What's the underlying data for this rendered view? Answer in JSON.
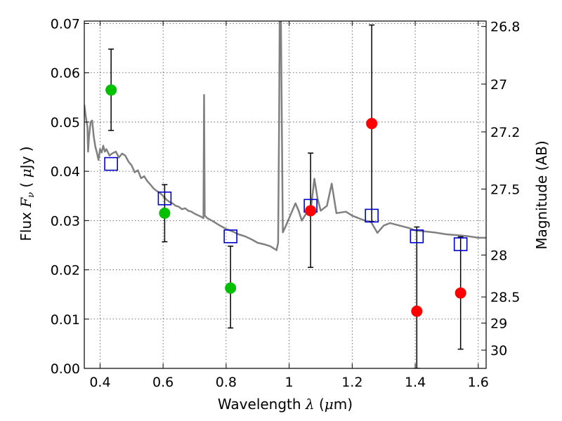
{
  "chart_data": {
    "type": "scatter",
    "xlabel": "Wavelength  λ (μm)",
    "ylabel": "Flux  F_ν  ( μJy )",
    "y2label": "Magnitude (AB)",
    "xlim": [
      0.35,
      1.625
    ],
    "ylim": [
      0.0,
      0.0705
    ],
    "grid": true,
    "x_ticks": [
      0.4,
      0.6,
      0.8,
      1.0,
      1.2,
      1.4,
      1.6
    ],
    "x_tick_labels": [
      "0.4",
      "0.6",
      "0.8",
      "1",
      "1.2",
      "1.4",
      "1.6"
    ],
    "y_ticks": [
      0.0,
      0.01,
      0.02,
      0.03,
      0.04,
      0.05,
      0.06,
      0.07
    ],
    "y_tick_labels": [
      "0.00",
      "0.01",
      "0.02",
      "0.03",
      "0.04",
      "0.05",
      "0.06",
      "0.07"
    ],
    "y2_ticks": [
      {
        "label": "26.8",
        "flux": 0.0694
      },
      {
        "label": "27",
        "flux": 0.0577
      },
      {
        "label": "27.2",
        "flux": 0.048
      },
      {
        "label": "27.5",
        "flux": 0.0364
      },
      {
        "label": "28",
        "flux": 0.023
      },
      {
        "label": "28.5",
        "flux": 0.0145
      },
      {
        "label": "29",
        "flux": 0.0092
      },
      {
        "label": "30",
        "flux": 0.0037
      }
    ],
    "colors": {
      "model": "#808080",
      "detection": "#00c000",
      "upper": "#ff0000",
      "model_flux": "#0000cc",
      "errorbar": "#000000"
    },
    "series": [
      {
        "kind": "line",
        "points": [
          [
            0.35,
            0.0535
          ],
          [
            0.355,
            0.051
          ],
          [
            0.36,
            0.049
          ],
          [
            0.362,
            0.044
          ],
          [
            0.365,
            0.047
          ],
          [
            0.37,
            0.05
          ],
          [
            0.375,
            0.0503
          ],
          [
            0.38,
            0.047
          ],
          [
            0.385,
            0.045
          ],
          [
            0.39,
            0.0438
          ],
          [
            0.395,
            0.0423
          ],
          [
            0.4,
            0.0445
          ],
          [
            0.405,
            0.0438
          ],
          [
            0.41,
            0.0452
          ],
          [
            0.415,
            0.044
          ],
          [
            0.42,
            0.0445
          ],
          [
            0.43,
            0.0432
          ],
          [
            0.44,
            0.0437
          ],
          [
            0.45,
            0.044
          ],
          [
            0.46,
            0.0428
          ],
          [
            0.47,
            0.0436
          ],
          [
            0.48,
            0.0432
          ],
          [
            0.49,
            0.042
          ],
          [
            0.5,
            0.0412
          ],
          [
            0.51,
            0.0398
          ],
          [
            0.52,
            0.0402
          ],
          [
            0.53,
            0.0386
          ],
          [
            0.54,
            0.039
          ],
          [
            0.55,
            0.038
          ],
          [
            0.56,
            0.0373
          ],
          [
            0.57,
            0.0365
          ],
          [
            0.58,
            0.036
          ],
          [
            0.59,
            0.0356
          ],
          [
            0.6,
            0.035
          ],
          [
            0.61,
            0.0343
          ],
          [
            0.62,
            0.0338
          ],
          [
            0.63,
            0.0335
          ],
          [
            0.64,
            0.033
          ],
          [
            0.65,
            0.0328
          ],
          [
            0.66,
            0.0323
          ],
          [
            0.67,
            0.0325
          ],
          [
            0.68,
            0.032
          ],
          [
            0.69,
            0.0318
          ],
          [
            0.7,
            0.0314
          ],
          [
            0.72,
            0.0308
          ],
          [
            0.728,
            0.0305
          ],
          [
            0.73,
            0.0555
          ],
          [
            0.732,
            0.031
          ],
          [
            0.74,
            0.0305
          ],
          [
            0.76,
            0.0298
          ],
          [
            0.78,
            0.029
          ],
          [
            0.8,
            0.0283
          ],
          [
            0.82,
            0.0278
          ],
          [
            0.84,
            0.0272
          ],
          [
            0.86,
            0.0268
          ],
          [
            0.88,
            0.0262
          ],
          [
            0.9,
            0.0255
          ],
          [
            0.92,
            0.0252
          ],
          [
            0.94,
            0.0248
          ],
          [
            0.96,
            0.024
          ],
          [
            0.965,
            0.0255
          ],
          [
            0.968,
            0.05
          ],
          [
            0.97,
            0.0705
          ],
          [
            0.974,
            0.0705
          ],
          [
            0.977,
            0.048
          ],
          [
            0.98,
            0.0276
          ],
          [
            0.99,
            0.029
          ],
          [
            1.0,
            0.0305
          ],
          [
            1.01,
            0.032
          ],
          [
            1.02,
            0.0335
          ],
          [
            1.03,
            0.032
          ],
          [
            1.04,
            0.03
          ],
          [
            1.05,
            0.031
          ],
          [
            1.06,
            0.032
          ],
          [
            1.07,
            0.033
          ],
          [
            1.08,
            0.0385
          ],
          [
            1.09,
            0.0345
          ],
          [
            1.1,
            0.032
          ],
          [
            1.12,
            0.033
          ],
          [
            1.135,
            0.0375
          ],
          [
            1.15,
            0.0315
          ],
          [
            1.18,
            0.0318
          ],
          [
            1.2,
            0.031
          ],
          [
            1.22,
            0.0305
          ],
          [
            1.24,
            0.03
          ],
          [
            1.26,
            0.0297
          ],
          [
            1.28,
            0.0275
          ],
          [
            1.3,
            0.029
          ],
          [
            1.32,
            0.0295
          ],
          [
            1.35,
            0.029
          ],
          [
            1.38,
            0.0285
          ],
          [
            1.4,
            0.028
          ],
          [
            1.43,
            0.0278
          ],
          [
            1.46,
            0.0276
          ],
          [
            1.5,
            0.0272
          ],
          [
            1.54,
            0.027
          ],
          [
            1.57,
            0.0268
          ],
          [
            1.6,
            0.0265
          ],
          [
            1.625,
            0.0265
          ]
        ]
      },
      {
        "kind": "model_flux",
        "points": [
          [
            0.435,
            0.0415
          ],
          [
            0.605,
            0.0345
          ],
          [
            0.814,
            0.0268
          ],
          [
            1.068,
            0.033
          ],
          [
            1.262,
            0.031
          ],
          [
            1.405,
            0.0268
          ],
          [
            1.544,
            0.0252
          ]
        ]
      },
      {
        "kind": "detection",
        "points": [
          {
            "x": 0.435,
            "y": 0.0565,
            "lo": 0.0483,
            "hi": 0.0648
          },
          {
            "x": 0.605,
            "y": 0.0315,
            "lo": 0.0257,
            "hi": 0.0373
          },
          {
            "x": 0.814,
            "y": 0.0163,
            "lo": 0.0082,
            "hi": 0.0248
          }
        ]
      },
      {
        "kind": "upper",
        "points": [
          {
            "x": 1.068,
            "y": 0.032,
            "lo": 0.0205,
            "hi": 0.0437
          },
          {
            "x": 1.262,
            "y": 0.0497,
            "lo": 0.0298,
            "hi": 0.0697
          },
          {
            "x": 1.405,
            "y": 0.0116,
            "lo": 0.0,
            "hi": 0.0287
          },
          {
            "x": 1.544,
            "y": 0.0153,
            "lo": 0.0039,
            "hi": 0.0267
          }
        ]
      }
    ]
  }
}
